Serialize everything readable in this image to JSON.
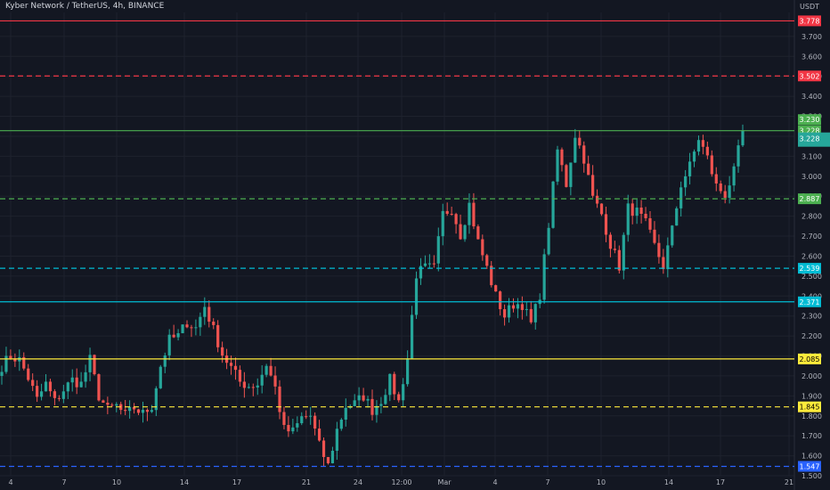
{
  "header": {
    "title": "Kyber Network / TetherUS, 4h, BINANCE",
    "unit": "USDT"
  },
  "chart_data": {
    "type": "candlestick",
    "title": "Kyber Network / TetherUS, 4h, BINANCE",
    "ylabel": "USDT",
    "ylim": [
      1.5,
      3.82
    ],
    "y_ticks": [
      "1.500",
      "1.600",
      "1.700",
      "1.800",
      "1.900",
      "2.000",
      "2.100",
      "2.200",
      "2.300",
      "2.400",
      "2.500",
      "2.600",
      "2.700",
      "2.800",
      "2.900",
      "3.000",
      "3.100",
      "3.200",
      "3.300",
      "3.400",
      "3.500",
      "3.600",
      "3.700"
    ],
    "x_ticks": [
      "4",
      "7",
      "10",
      "14",
      "17",
      "21",
      "24",
      "12:00",
      "Mar",
      "4",
      "7",
      "10",
      "14",
      "17",
      "21"
    ],
    "grid": true,
    "colors": {
      "up": "#26a69a",
      "down": "#ef5350",
      "background": "#131722",
      "grid": "#1e222d",
      "axis_text": "#b2b5be"
    },
    "levels": [
      {
        "value": 3.778,
        "label": "3.778",
        "color": "#f23645",
        "style": "solid"
      },
      {
        "value": 3.502,
        "label": "3.502",
        "color": "#f23645",
        "style": "dashed"
      },
      {
        "value": 3.228,
        "label": "3.228",
        "color": "#4caf50",
        "style": "solid"
      },
      {
        "value": 2.887,
        "label": "2.887",
        "color": "#4caf50",
        "style": "dashed"
      },
      {
        "value": 2.539,
        "label": "2.539",
        "color": "#00bcd4",
        "style": "dashed"
      },
      {
        "value": 2.371,
        "label": "2.371",
        "color": "#00bcd4",
        "style": "solid"
      },
      {
        "value": 2.085,
        "label": "2.085",
        "color": "#ffeb3b",
        "style": "solid"
      },
      {
        "value": 1.845,
        "label": "1.845",
        "color": "#ffeb3b",
        "style": "dashed"
      },
      {
        "value": 1.547,
        "label": "1.547",
        "color": "#2962ff",
        "style": "dashed"
      }
    ],
    "last_close": {
      "value": 3.23,
      "label": "3.230",
      "color": "#26a69a"
    },
    "price_markers": [
      {
        "label": "3.228",
        "color": "#26a69a"
      }
    ],
    "anchors": [
      [
        1.95,
        2.05
      ],
      [
        2.12,
        2.1
      ],
      [
        2.05,
        2.08
      ],
      [
        1.97,
        1.99
      ],
      [
        1.89,
        1.88
      ],
      [
        1.95,
        1.96
      ],
      [
        1.87,
        1.87
      ],
      [
        1.92,
        1.93
      ],
      [
        1.97,
        1.98
      ],
      [
        1.97,
        1.96
      ],
      [
        2.09,
        2.08
      ],
      [
        1.91,
        1.9
      ],
      [
        1.82,
        1.83
      ],
      [
        1.86,
        1.85
      ],
      [
        1.8,
        1.8
      ],
      [
        1.84,
        1.84
      ],
      [
        1.8,
        1.81
      ],
      [
        1.84,
        1.85
      ],
      [
        2.04,
        2.05
      ],
      [
        2.17,
        2.18
      ],
      [
        2.21,
        2.2
      ],
      [
        2.26,
        2.27
      ],
      [
        2.22,
        2.24
      ],
      [
        2.33,
        2.35
      ],
      [
        2.23,
        2.23
      ],
      [
        2.12,
        2.11
      ],
      [
        2.04,
        2.04
      ],
      [
        1.98,
        1.97
      ],
      [
        1.95,
        1.95
      ],
      [
        1.97,
        1.96
      ],
      [
        1.98,
        2.06
      ],
      [
        1.95,
        1.94
      ],
      [
        1.75,
        1.73
      ],
      [
        1.73,
        1.72
      ],
      [
        1.78,
        1.79
      ],
      [
        1.8,
        1.8
      ],
      [
        1.66,
        1.65
      ],
      [
        1.57,
        1.55
      ],
      [
        1.74,
        1.73
      ],
      [
        1.84,
        1.85
      ],
      [
        1.86,
        1.86
      ],
      [
        1.91,
        1.9
      ],
      [
        1.83,
        1.83
      ],
      [
        1.86,
        1.88
      ],
      [
        1.97,
        1.98
      ],
      [
        1.88,
        1.87
      ],
      [
        2.08,
        2.09
      ],
      [
        2.51,
        2.51
      ],
      [
        2.53,
        2.54
      ],
      [
        2.55,
        2.54
      ],
      [
        2.79,
        2.81
      ],
      [
        2.85,
        2.84
      ],
      [
        2.72,
        2.71
      ],
      [
        2.84,
        2.86
      ],
      [
        2.68,
        2.67
      ],
      [
        2.52,
        2.54
      ],
      [
        2.4,
        2.4
      ],
      [
        2.3,
        2.3
      ],
      [
        2.35,
        2.36
      ],
      [
        2.35,
        2.36
      ],
      [
        2.25,
        2.26
      ],
      [
        2.4,
        2.41
      ],
      [
        2.75,
        2.76
      ],
      [
        3.12,
        3.13
      ],
      [
        2.95,
        2.96
      ],
      [
        3.2,
        3.21
      ],
      [
        3.08,
        3.09
      ],
      [
        2.88,
        2.89
      ],
      [
        2.8,
        2.81
      ],
      [
        2.65,
        2.66
      ],
      [
        2.55,
        2.55
      ],
      [
        2.83,
        2.84
      ],
      [
        2.82,
        2.82
      ],
      [
        2.75,
        2.76
      ],
      [
        2.66,
        2.65
      ],
      [
        2.53,
        2.55
      ],
      [
        2.72,
        2.73
      ],
      [
        2.95,
        2.96
      ],
      [
        3.03,
        3.05
      ],
      [
        3.18,
        3.19
      ],
      [
        3.08,
        3.09
      ],
      [
        2.95,
        2.95
      ],
      [
        2.9,
        2.91
      ],
      [
        3.01,
        3.02
      ],
      [
        3.23,
        3.23
      ]
    ]
  }
}
